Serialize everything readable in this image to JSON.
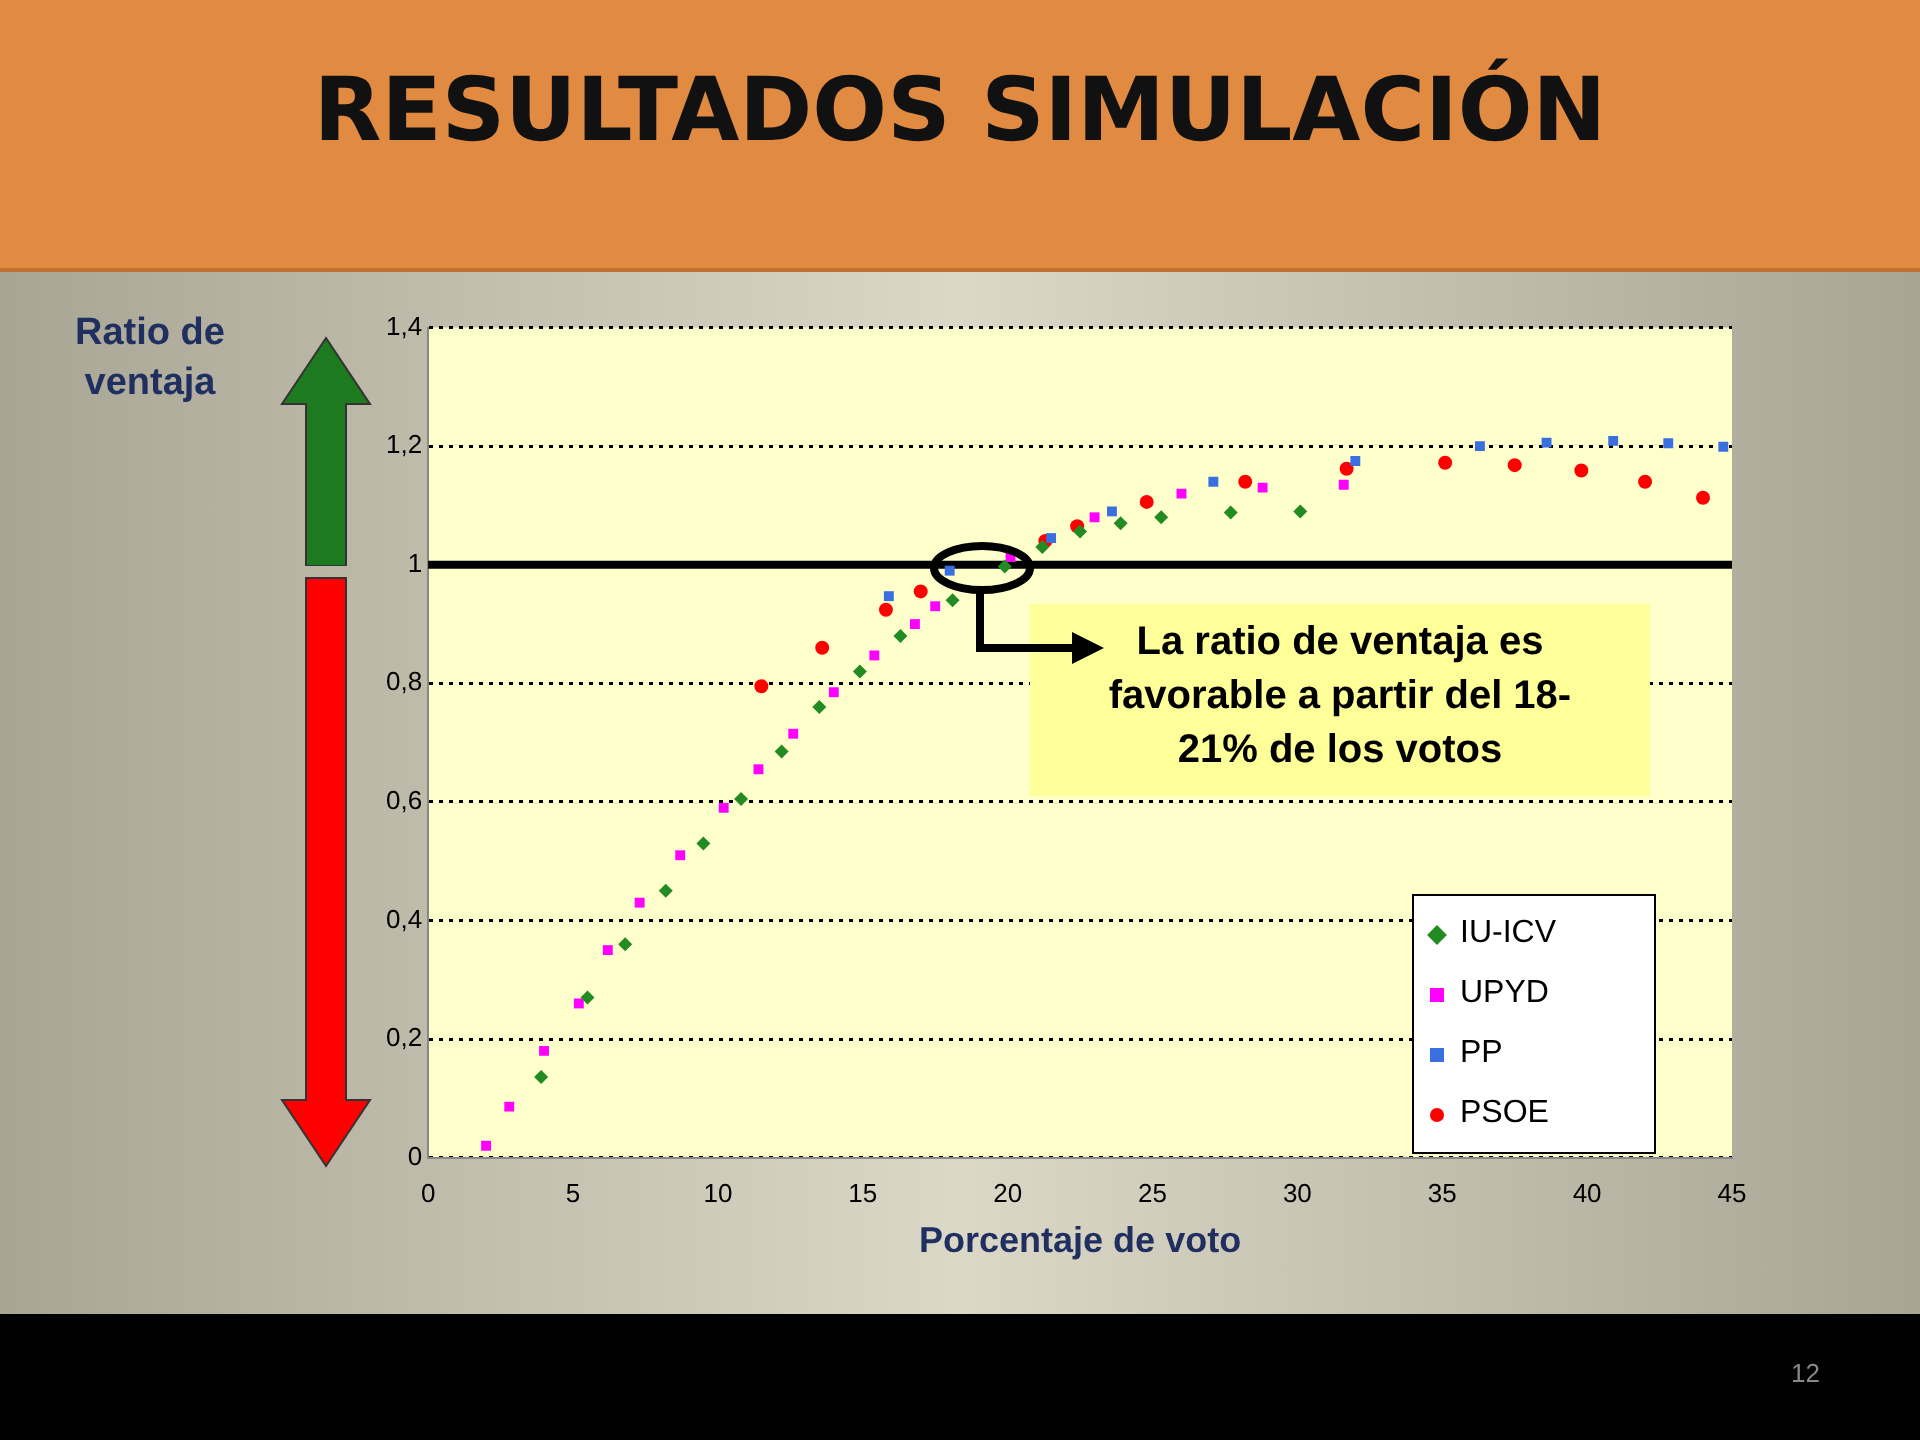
{
  "chart_data": {
    "type": "scatter",
    "title": "RESULTADOS SIMULACIÓN",
    "xlabel": "Porcentaje de voto",
    "ylabel": "Ratio de ventaja",
    "xlim": [
      0,
      45
    ],
    "xticks": [
      0,
      5,
      10,
      15,
      20,
      25,
      30,
      35,
      40,
      45
    ],
    "ylim": [
      0,
      1.4
    ],
    "yticks": [
      {
        "value": 0,
        "label": "0"
      },
      {
        "value": 0.2,
        "label": "0,2"
      },
      {
        "value": 0.4,
        "label": "0,4"
      },
      {
        "value": 0.6,
        "label": "0,6"
      },
      {
        "value": 0.8,
        "label": "0,8"
      },
      {
        "value": 1,
        "label": "1"
      },
      {
        "value": 1.2,
        "label": "1,2"
      },
      {
        "value": 1.4,
        "label": "1,4"
      }
    ],
    "grid": "y",
    "legend": "bottom right",
    "ref_lines": [
      {
        "axis": "y",
        "value": 1,
        "color": "#000000",
        "line_style": "solid"
      }
    ],
    "annotations": [
      "La ratio de ventaja es favorable a partir del 18-21% de los votos",
      "12"
    ],
    "series": [
      {
        "name": "IU-ICV",
        "color": "#228b22",
        "marker": "diamond",
        "x": [
          3.9,
          5.5,
          6.8,
          8.2,
          9.5,
          10.8,
          12.2,
          13.5,
          14.9,
          16.3,
          18.1,
          19.9,
          21.2,
          22.5,
          23.9,
          25.3,
          27.7,
          30.1
        ],
        "values": [
          0.136,
          0.27,
          0.36,
          0.45,
          0.53,
          0.605,
          0.685,
          0.76,
          0.82,
          0.88,
          0.94,
          0.997,
          1.03,
          1.056,
          1.07,
          1.08,
          1.088,
          1.09
        ]
      },
      {
        "name": "UPYD",
        "color": "#ff00ff",
        "marker": "square",
        "x": [
          2,
          2.8,
          4,
          5.2,
          6.2,
          7.3,
          8.7,
          10.2,
          11.4,
          12.6,
          14,
          15.4,
          16.8,
          17.5,
          20.1,
          23,
          26,
          28.8,
          31.6
        ],
        "values": [
          0.02,
          0.086,
          0.18,
          0.26,
          0.35,
          0.43,
          0.51,
          0.59,
          0.655,
          0.715,
          0.785,
          0.847,
          0.9,
          0.93,
          1.013,
          1.08,
          1.12,
          1.13,
          1.135
        ]
      },
      {
        "name": "PP",
        "color": "#3a6fe0",
        "marker": "square",
        "x": [
          15.9,
          18,
          21.5,
          23.6,
          27.1,
          32,
          36.3,
          38.6,
          40.9,
          42.8,
          44.7
        ],
        "values": [
          0.947,
          0.99,
          1.045,
          1.09,
          1.14,
          1.175,
          1.2,
          1.206,
          1.209,
          1.205,
          1.199
        ]
      },
      {
        "name": "PSOE",
        "color": "#ff0000",
        "marker": "circle",
        "x": [
          11.5,
          13.6,
          15.8,
          17,
          21.3,
          22.4,
          24.8,
          28.2,
          31.7,
          35.1,
          37.5,
          39.8,
          42,
          44
        ],
        "values": [
          0.795,
          0.86,
          0.924,
          0.955,
          1.04,
          1.065,
          1.106,
          1.14,
          1.162,
          1.172,
          1.168,
          1.159,
          1.14,
          1.113
        ]
      }
    ]
  }
}
